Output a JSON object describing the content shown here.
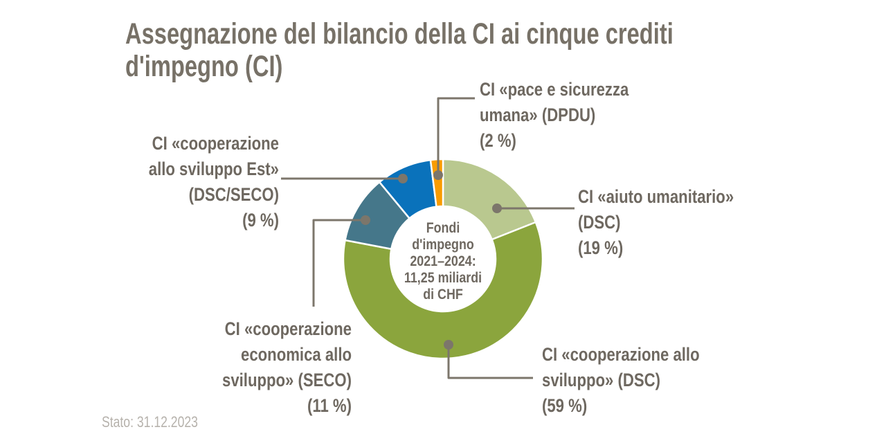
{
  "chart_data": {
    "type": "pie",
    "subtype": "donut",
    "title": "Assegnazione del bilancio della CI ai cinque crediti\nd'impegno (CI)",
    "center_label": "Fondi\nd'impegno\n2021–2024:\n11,25 miliardi\ndi CHF",
    "total": "11,25 miliardi di CHF",
    "period": "2021–2024",
    "unit": "%",
    "legend_position": "callout-labels",
    "start_angle_deg": 0,
    "direction": "clockwise",
    "slices": [
      {
        "label": "CI «aiuto umanitario» (DSC)",
        "value": 19,
        "color": "#B9C88F",
        "display": "CI «aiuto umanitario»\n(DSC)\n(19 %)"
      },
      {
        "label": "CI «cooperazione allo sviluppo» (DSC)",
        "value": 59,
        "color": "#8BA53D",
        "display": "CI «cooperazione allo\nsviluppo» (DSC)\n(59 %)"
      },
      {
        "label": "CI «cooperazione economica allo sviluppo» (SECO)",
        "value": 11,
        "color": "#45778A",
        "display": "CI «cooperazione\neconomica allo\nsviluppo» (SECO)\n(11 %)"
      },
      {
        "label": "CI «cooperazione allo sviluppo Est» (DSC/SECO)",
        "value": 9,
        "color": "#0A72BB",
        "display": "CI «cooperazione\nallo sviluppo Est»\n(DSC/SECO)\n(9 %)"
      },
      {
        "label": "CI «pace e sicurezza umana» (DPDU)",
        "value": 2,
        "color": "#F99C00",
        "display": "CI «pace e sicurezza\numana» (DPDU)\n(2 %)"
      }
    ],
    "footnote": "Stato: 31.12.2023",
    "colors": {
      "title_text": "#777167",
      "label_text": "#6E6860",
      "leader_line": "#7C766B",
      "footnote_text": "#B6B2AC",
      "slice_separator": "#FFFFFF"
    }
  }
}
